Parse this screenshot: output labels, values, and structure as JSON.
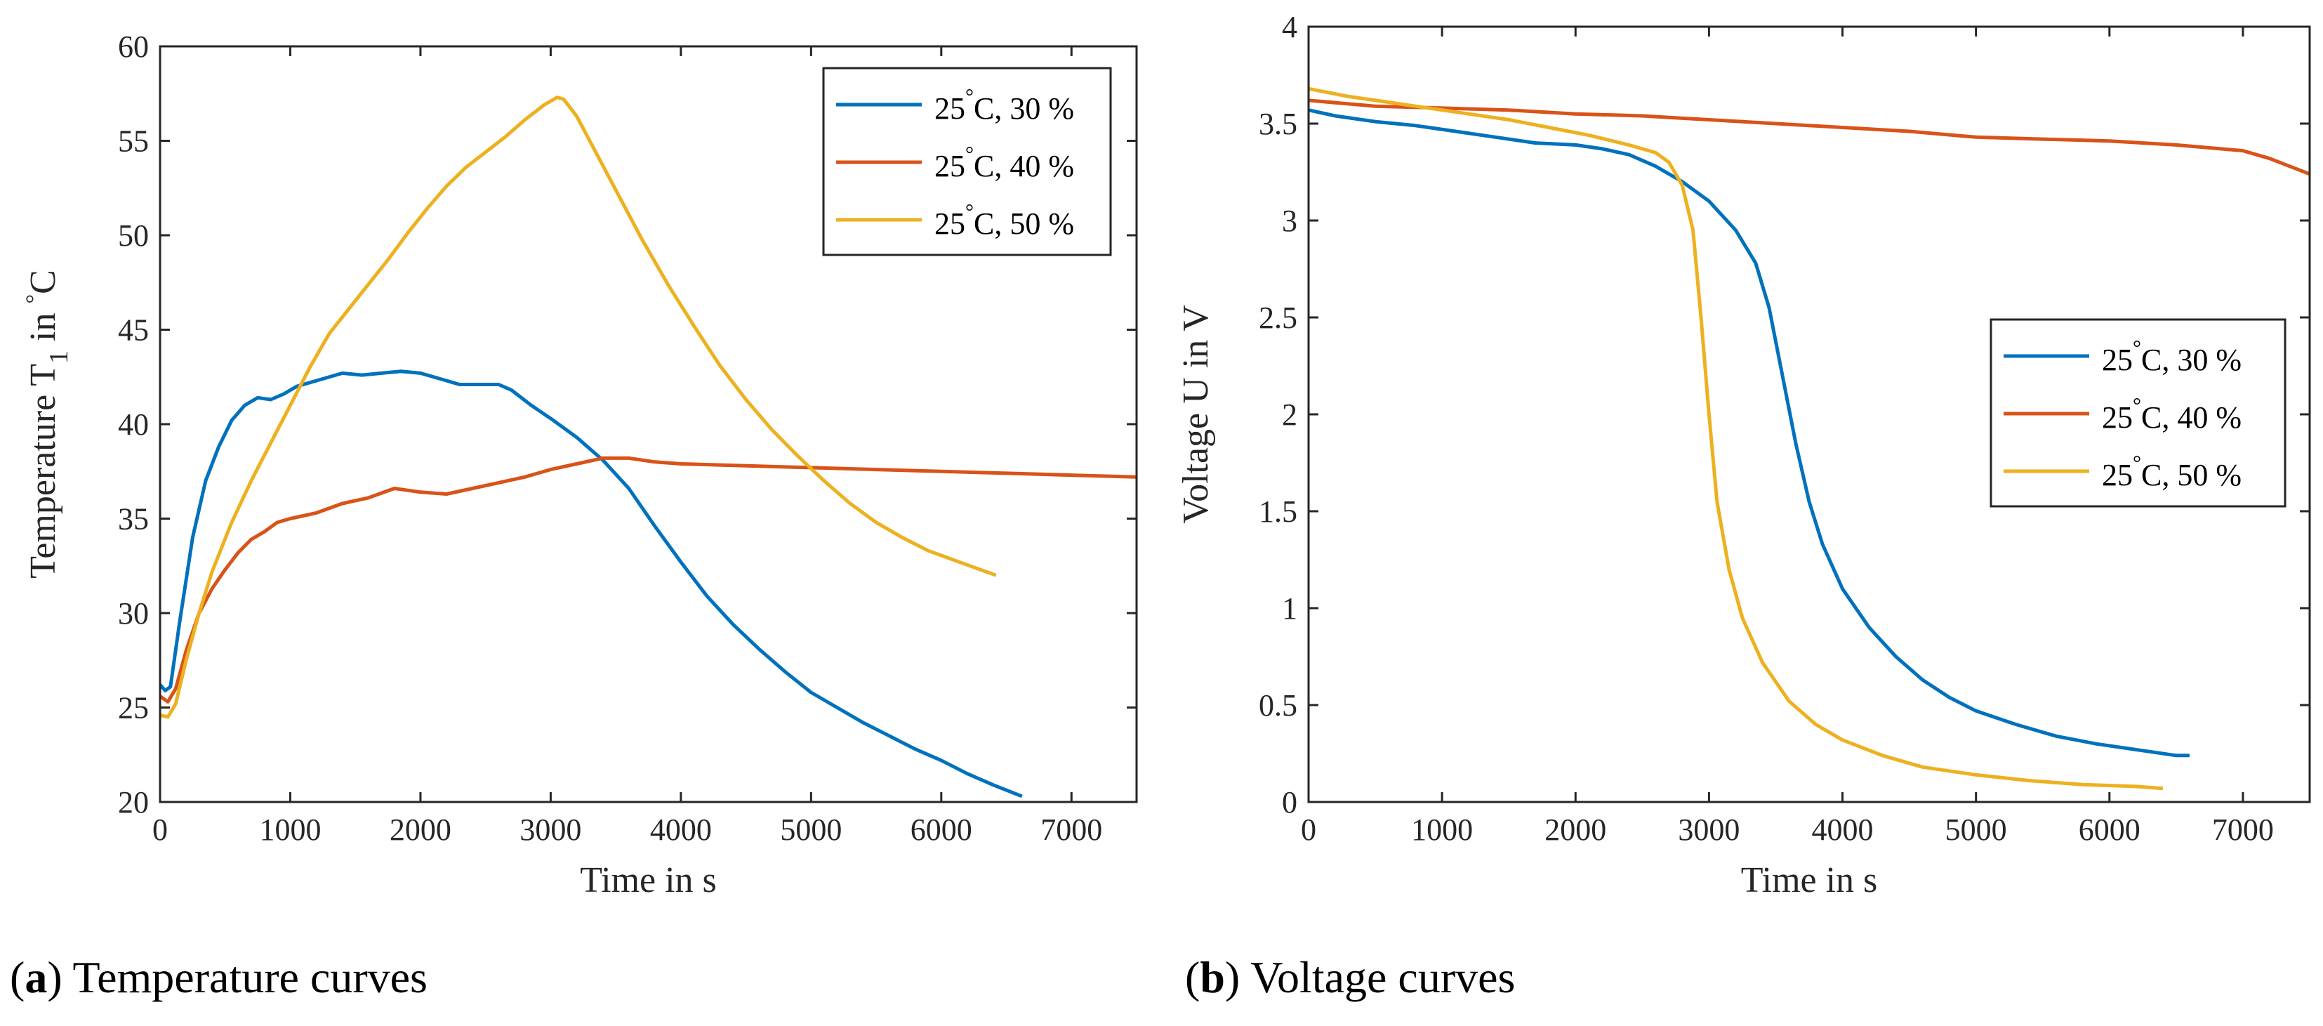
{
  "chart_data": [
    {
      "type": "line",
      "caption": {
        "label": "a",
        "text": "Temperature curves"
      },
      "xlabel": "Time in s",
      "ylabel": {
        "prefix": "Temperature T",
        "subscript": "1",
        "suffix": " in ",
        "degree": "°",
        "unit": "C"
      },
      "xlim": [
        0,
        7500
      ],
      "ylim": [
        20,
        60
      ],
      "xticks": [
        0,
        1000,
        2000,
        3000,
        4000,
        5000,
        6000,
        7000
      ],
      "yticks": [
        20,
        25,
        30,
        35,
        40,
        45,
        50,
        55,
        60
      ],
      "legend_position": "top-right",
      "series": [
        {
          "name": "25°C, 30 %",
          "degree": "°",
          "label_main": "C, 30 %",
          "label_prefix": "25",
          "color": "#0072BD",
          "points": [
            [
              0,
              26.2
            ],
            [
              40,
              25.9
            ],
            [
              80,
              26.1
            ],
            [
              150,
              29.5
            ],
            [
              250,
              34.0
            ],
            [
              350,
              37.0
            ],
            [
              450,
              38.8
            ],
            [
              550,
              40.2
            ],
            [
              650,
              41.0
            ],
            [
              750,
              41.4
            ],
            [
              850,
              41.3
            ],
            [
              950,
              41.6
            ],
            [
              1050,
              42.0
            ],
            [
              1200,
              42.3
            ],
            [
              1400,
              42.7
            ],
            [
              1550,
              42.6
            ],
            [
              1700,
              42.7
            ],
            [
              1850,
              42.8
            ],
            [
              2000,
              42.7
            ],
            [
              2150,
              42.4
            ],
            [
              2300,
              42.1
            ],
            [
              2450,
              42.1
            ],
            [
              2600,
              42.1
            ],
            [
              2700,
              41.8
            ],
            [
              2850,
              41.0
            ],
            [
              3000,
              40.3
            ],
            [
              3200,
              39.3
            ],
            [
              3400,
              38.1
            ],
            [
              3600,
              36.6
            ],
            [
              3800,
              34.6
            ],
            [
              4000,
              32.7
            ],
            [
              4200,
              30.9
            ],
            [
              4400,
              29.4
            ],
            [
              4600,
              28.1
            ],
            [
              4800,
              26.9
            ],
            [
              5000,
              25.8
            ],
            [
              5200,
              25.0
            ],
            [
              5400,
              24.2
            ],
            [
              5600,
              23.5
            ],
            [
              5800,
              22.8
            ],
            [
              6000,
              22.2
            ],
            [
              6200,
              21.5
            ],
            [
              6400,
              20.9
            ],
            [
              6620,
              20.3
            ]
          ]
        },
        {
          "name": "25°C, 40 %",
          "degree": "°",
          "label_main": "C, 40 %",
          "label_prefix": "25",
          "color": "#D95319",
          "points": [
            [
              0,
              25.6
            ],
            [
              60,
              25.3
            ],
            [
              120,
              26.0
            ],
            [
              200,
              28.0
            ],
            [
              300,
              30.0
            ],
            [
              400,
              31.3
            ],
            [
              500,
              32.3
            ],
            [
              600,
              33.2
            ],
            [
              700,
              33.9
            ],
            [
              800,
              34.3
            ],
            [
              900,
              34.8
            ],
            [
              1000,
              35.0
            ],
            [
              1200,
              35.3
            ],
            [
              1400,
              35.8
            ],
            [
              1600,
              36.1
            ],
            [
              1800,
              36.6
            ],
            [
              2000,
              36.4
            ],
            [
              2200,
              36.3
            ],
            [
              2400,
              36.6
            ],
            [
              2600,
              36.9
            ],
            [
              2800,
              37.2
            ],
            [
              3000,
              37.6
            ],
            [
              3200,
              37.9
            ],
            [
              3400,
              38.2
            ],
            [
              3600,
              38.2
            ],
            [
              3800,
              38.0
            ],
            [
              4000,
              37.9
            ],
            [
              4500,
              37.8
            ],
            [
              5000,
              37.7
            ],
            [
              5500,
              37.6
            ],
            [
              6000,
              37.5
            ],
            [
              6500,
              37.4
            ],
            [
              7000,
              37.3
            ],
            [
              7500,
              37.2
            ]
          ]
        },
        {
          "name": "25°C, 50 %",
          "degree": "°",
          "label_main": "C, 50 %",
          "label_prefix": "25",
          "color": "#EDB120",
          "points": [
            [
              0,
              24.6
            ],
            [
              60,
              24.5
            ],
            [
              120,
              25.2
            ],
            [
              200,
              27.5
            ],
            [
              300,
              30.0
            ],
            [
              400,
              32.2
            ],
            [
              550,
              34.8
            ],
            [
              700,
              37.0
            ],
            [
              850,
              39.0
            ],
            [
              1000,
              41.0
            ],
            [
              1150,
              43.0
            ],
            [
              1300,
              44.8
            ],
            [
              1450,
              46.1
            ],
            [
              1600,
              47.4
            ],
            [
              1750,
              48.7
            ],
            [
              1900,
              50.1
            ],
            [
              2050,
              51.4
            ],
            [
              2200,
              52.6
            ],
            [
              2350,
              53.6
            ],
            [
              2500,
              54.4
            ],
            [
              2650,
              55.2
            ],
            [
              2800,
              56.1
            ],
            [
              2950,
              56.9
            ],
            [
              3050,
              57.3
            ],
            [
              3100,
              57.2
            ],
            [
              3200,
              56.3
            ],
            [
              3300,
              55.0
            ],
            [
              3400,
              53.7
            ],
            [
              3500,
              52.4
            ],
            [
              3700,
              49.8
            ],
            [
              3900,
              47.4
            ],
            [
              4100,
              45.2
            ],
            [
              4300,
              43.1
            ],
            [
              4500,
              41.3
            ],
            [
              4700,
              39.7
            ],
            [
              4900,
              38.3
            ],
            [
              5100,
              37.0
            ],
            [
              5300,
              35.8
            ],
            [
              5500,
              34.8
            ],
            [
              5700,
              34.0
            ],
            [
              5900,
              33.3
            ],
            [
              6100,
              32.8
            ],
            [
              6300,
              32.3
            ],
            [
              6420,
              32.0
            ]
          ]
        }
      ]
    },
    {
      "type": "line",
      "caption": {
        "label": "b",
        "text": "Voltage curves"
      },
      "xlabel": "Time in s",
      "ylabel": "Voltage U in V",
      "xlim": [
        0,
        7500
      ],
      "ylim": [
        0,
        4
      ],
      "xticks": [
        0,
        1000,
        2000,
        3000,
        4000,
        5000,
        6000,
        7000
      ],
      "yticks": [
        0,
        0.5,
        1,
        1.5,
        2,
        2.5,
        3,
        3.5,
        4
      ],
      "legend_position": "center-right",
      "series": [
        {
          "name": "25°C, 30 %",
          "degree": "°",
          "label_main": "C, 30 %",
          "label_prefix": "25",
          "color": "#0072BD",
          "points": [
            [
              0,
              3.57
            ],
            [
              200,
              3.54
            ],
            [
              500,
              3.51
            ],
            [
              800,
              3.49
            ],
            [
              1100,
              3.46
            ],
            [
              1400,
              3.43
            ],
            [
              1700,
              3.4
            ],
            [
              2000,
              3.39
            ],
            [
              2200,
              3.37
            ],
            [
              2400,
              3.34
            ],
            [
              2600,
              3.28
            ],
            [
              2800,
              3.2
            ],
            [
              3000,
              3.1
            ],
            [
              3200,
              2.95
            ],
            [
              3350,
              2.78
            ],
            [
              3450,
              2.55
            ],
            [
              3550,
              2.2
            ],
            [
              3650,
              1.85
            ],
            [
              3750,
              1.55
            ],
            [
              3850,
              1.33
            ],
            [
              4000,
              1.1
            ],
            [
              4200,
              0.9
            ],
            [
              4400,
              0.75
            ],
            [
              4600,
              0.63
            ],
            [
              4800,
              0.54
            ],
            [
              5000,
              0.47
            ],
            [
              5300,
              0.4
            ],
            [
              5600,
              0.34
            ],
            [
              5900,
              0.3
            ],
            [
              6200,
              0.27
            ],
            [
              6500,
              0.24
            ],
            [
              6600,
              0.24
            ]
          ]
        },
        {
          "name": "25°C, 40 %",
          "degree": "°",
          "label_main": "C, 40 %",
          "label_prefix": "25",
          "color": "#D95319",
          "points": [
            [
              0,
              3.62
            ],
            [
              500,
              3.59
            ],
            [
              1000,
              3.58
            ],
            [
              1500,
              3.57
            ],
            [
              2000,
              3.55
            ],
            [
              2500,
              3.54
            ],
            [
              3000,
              3.52
            ],
            [
              3500,
              3.5
            ],
            [
              4000,
              3.48
            ],
            [
              4500,
              3.46
            ],
            [
              5000,
              3.43
            ],
            [
              5500,
              3.42
            ],
            [
              6000,
              3.41
            ],
            [
              6500,
              3.39
            ],
            [
              7000,
              3.36
            ],
            [
              7200,
              3.32
            ],
            [
              7500,
              3.24
            ]
          ]
        },
        {
          "name": "25°C, 50 %",
          "degree": "°",
          "label_main": "C, 50 %",
          "label_prefix": "25",
          "color": "#EDB120",
          "points": [
            [
              0,
              3.68
            ],
            [
              300,
              3.64
            ],
            [
              600,
              3.61
            ],
            [
              900,
              3.58
            ],
            [
              1200,
              3.55
            ],
            [
              1500,
              3.52
            ],
            [
              1800,
              3.48
            ],
            [
              2100,
              3.44
            ],
            [
              2400,
              3.39
            ],
            [
              2600,
              3.35
            ],
            [
              2700,
              3.3
            ],
            [
              2800,
              3.18
            ],
            [
              2880,
              2.95
            ],
            [
              2940,
              2.5
            ],
            [
              3000,
              2.0
            ],
            [
              3060,
              1.55
            ],
            [
              3150,
              1.2
            ],
            [
              3250,
              0.95
            ],
            [
              3400,
              0.72
            ],
            [
              3600,
              0.52
            ],
            [
              3800,
              0.4
            ],
            [
              4000,
              0.32
            ],
            [
              4300,
              0.24
            ],
            [
              4600,
              0.18
            ],
            [
              5000,
              0.14
            ],
            [
              5400,
              0.11
            ],
            [
              5800,
              0.09
            ],
            [
              6200,
              0.08
            ],
            [
              6400,
              0.07
            ]
          ]
        }
      ]
    }
  ]
}
